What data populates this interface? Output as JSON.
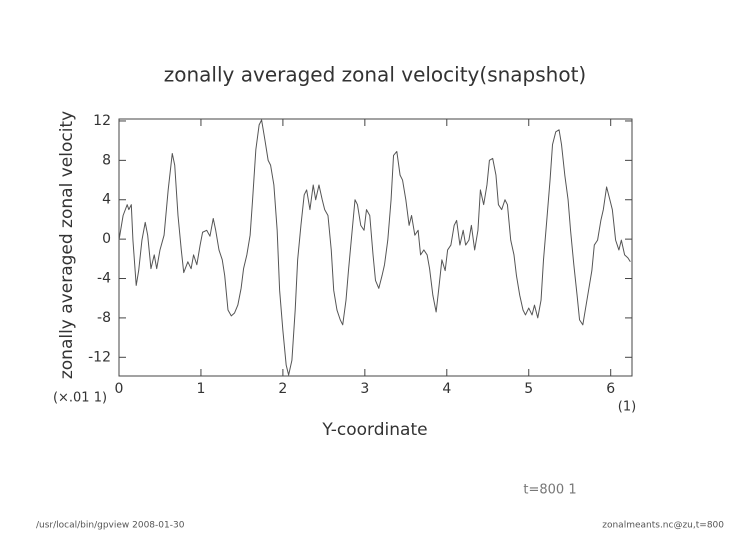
{
  "chart_data": {
    "type": "line",
    "title": "zonally averaged zonal velocity(snapshot)",
    "ylabel": "zonally averaged zonal velocity",
    "y_scale_label": "(×.01 1)",
    "xlabel": "Y-coordinate",
    "x_scale_label": "(1)",
    "annotation": "t=800 1",
    "footer_left": "/usr/local/bin/gpview   2008-01-30",
    "footer_right": "zonalmeants.nc@zu,t=800",
    "xlim": [
      0,
      6.26
    ],
    "ylim": [
      -13.9,
      12.2
    ],
    "xticks": [
      0,
      1,
      2,
      3,
      4,
      5,
      6
    ],
    "yticks": [
      -12,
      -8,
      -4,
      0,
      4,
      8,
      12
    ],
    "x": [
      0,
      0.05,
      0.1,
      0.12,
      0.15,
      0.17,
      0.21,
      0.24,
      0.28,
      0.32,
      0.35,
      0.39,
      0.43,
      0.46,
      0.5,
      0.55,
      0.6,
      0.65,
      0.68,
      0.72,
      0.76,
      0.79,
      0.84,
      0.88,
      0.91,
      0.95,
      0.99,
      1.02,
      1.07,
      1.11,
      1.15,
      1.18,
      1.22,
      1.26,
      1.29,
      1.33,
      1.37,
      1.41,
      1.45,
      1.49,
      1.52,
      1.56,
      1.6,
      1.63,
      1.67,
      1.71,
      1.74,
      1.78,
      1.82,
      1.85,
      1.89,
      1.93,
      1.96,
      2.0,
      2.04,
      2.07,
      2.11,
      2.15,
      2.18,
      2.22,
      2.26,
      2.29,
      2.33,
      2.37,
      2.4,
      2.44,
      2.48,
      2.51,
      2.55,
      2.59,
      2.62,
      2.66,
      2.7,
      2.73,
      2.77,
      2.8,
      2.84,
      2.88,
      2.91,
      2.95,
      2.99,
      3.02,
      3.06,
      3.1,
      3.13,
      3.17,
      3.21,
      3.24,
      3.28,
      3.32,
      3.35,
      3.39,
      3.43,
      3.46,
      3.5,
      3.54,
      3.57,
      3.61,
      3.65,
      3.68,
      3.72,
      3.76,
      3.79,
      3.83,
      3.87,
      3.9,
      3.94,
      3.98,
      4.01,
      4.05,
      4.09,
      4.12,
      4.16,
      4.2,
      4.23,
      4.27,
      4.3,
      4.34,
      4.38,
      4.41,
      4.45,
      4.49,
      4.52,
      4.56,
      4.6,
      4.63,
      4.67,
      4.71,
      4.74,
      4.78,
      4.82,
      4.85,
      4.89,
      4.93,
      4.96,
      5.0,
      5.04,
      5.07,
      5.11,
      5.15,
      5.18,
      5.22,
      5.26,
      5.29,
      5.33,
      5.37,
      5.4,
      5.44,
      5.48,
      5.51,
      5.55,
      5.59,
      5.62,
      5.66,
      5.7,
      5.73,
      5.77,
      5.8,
      5.84,
      5.88,
      5.91,
      5.95,
      5.99,
      6.02,
      6.06,
      6.1,
      6.13,
      6.17,
      6.21,
      6.24
    ],
    "series": [
      {
        "color": "#555555",
        "values": [
          -0.1,
          2.4,
          3.5,
          3.0,
          3.5,
          -0.1,
          -4.7,
          -3.2,
          -0.1,
          1.7,
          0.4,
          -3.0,
          -1.6,
          -3.0,
          -1.1,
          0.4,
          5.0,
          8.7,
          7.5,
          2.4,
          -1.1,
          -3.4,
          -2.3,
          -3.0,
          -1.6,
          -2.6,
          -0.6,
          0.7,
          0.9,
          0.3,
          2.1,
          0.9,
          -1.1,
          -2.1,
          -3.7,
          -7.2,
          -7.8,
          -7.5,
          -6.7,
          -5.0,
          -3.0,
          -1.6,
          0.4,
          4.0,
          9.1,
          11.6,
          12.1,
          10.1,
          8.0,
          7.5,
          5.5,
          0.9,
          -5.2,
          -9.3,
          -12.8,
          -13.8,
          -12.3,
          -7.2,
          -2.1,
          1.4,
          4.5,
          5.0,
          3.0,
          5.5,
          4.0,
          5.5,
          4.0,
          3.0,
          2.4,
          -1.1,
          -5.2,
          -7.2,
          -8.2,
          -8.7,
          -6.2,
          -3.2,
          0.4,
          4.0,
          3.5,
          1.4,
          0.9,
          3.0,
          2.4,
          -1.6,
          -4.2,
          -5.0,
          -3.7,
          -2.6,
          -0.1,
          4.0,
          8.5,
          8.9,
          6.5,
          6.0,
          4.0,
          1.4,
          2.4,
          0.4,
          0.9,
          -1.6,
          -1.1,
          -1.6,
          -3.0,
          -5.7,
          -7.4,
          -5.2,
          -2.1,
          -3.2,
          -1.1,
          -0.6,
          1.4,
          1.9,
          -0.6,
          0.9,
          -0.6,
          -0.1,
          1.4,
          -1.1,
          0.9,
          5.0,
          3.5,
          5.5,
          8.0,
          8.2,
          6.5,
          3.5,
          3.0,
          4.0,
          3.5,
          -0.1,
          -1.6,
          -3.7,
          -5.7,
          -7.2,
          -7.7,
          -7.0,
          -7.7,
          -6.7,
          -8.0,
          -6.2,
          -2.1,
          1.9,
          6.0,
          9.6,
          10.9,
          11.1,
          9.6,
          6.5,
          4.0,
          0.9,
          -2.6,
          -5.7,
          -8.2,
          -8.7,
          -6.7,
          -5.2,
          -3.2,
          -0.6,
          -0.1,
          1.9,
          3.0,
          5.3,
          4.0,
          3.0,
          -0.1,
          -1.1,
          -0.1,
          -1.6,
          -1.9,
          -2.3
        ]
      }
    ]
  }
}
